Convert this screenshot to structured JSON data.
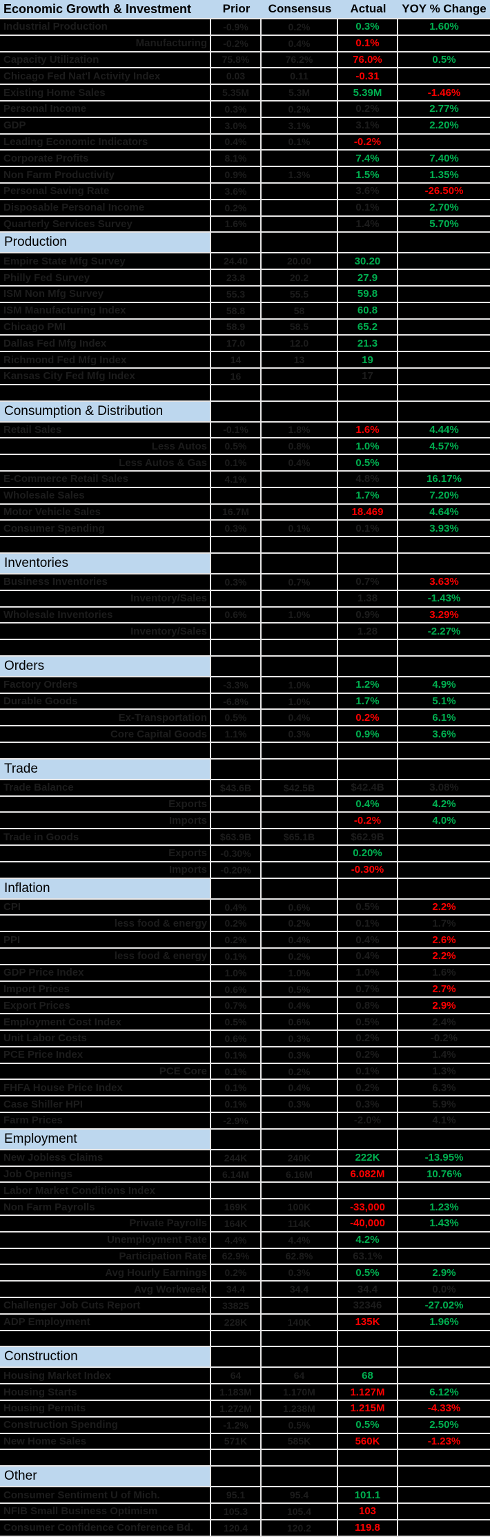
{
  "header": {
    "label": "Economic Growth & Investment",
    "prior": "Prior",
    "consensus": "Consensus",
    "actual": "Actual",
    "yoy": "YOY % Change"
  },
  "colors": {
    "header_bg": "#bdd7ee",
    "row_bg": "#000000",
    "gridline": "#e7e6e6",
    "dim_text": "#1c1c1c",
    "positive_green": "#00b050",
    "negative_red": "#ff0000",
    "header_text": "#000000"
  },
  "rows": [
    {
      "t": "d",
      "label": "Industrial Production",
      "sub": false,
      "prior": "-0.9%",
      "consensus": "0.2%",
      "actual": "0.3%",
      "at": "green",
      "yoy": "1.60%",
      "yt": "green"
    },
    {
      "t": "d",
      "label": "Manufacturing",
      "sub": true,
      "prior": "-0.2%",
      "consensus": "0.4%",
      "actual": "0.1%",
      "at": "red",
      "yoy": "",
      "yt": "dim"
    },
    {
      "t": "d",
      "label": "Capacity Utilization",
      "sub": false,
      "prior": "75.8%",
      "consensus": "76.2%",
      "actual": "76.0%",
      "at": "red",
      "yoy": "0.5%",
      "yt": "green"
    },
    {
      "t": "d",
      "label": "Chicago Fed Nat'l Activity Index",
      "sub": false,
      "prior": "0.03",
      "consensus": "0.11",
      "actual": "-0.31",
      "at": "red",
      "yoy": "",
      "yt": "dim"
    },
    {
      "t": "d",
      "label": "Existing Home Sales",
      "sub": false,
      "prior": "5.35M",
      "consensus": "5.3M",
      "actual": "5.39M",
      "at": "green",
      "yoy": "-1.46%",
      "yt": "red"
    },
    {
      "t": "d",
      "label": "Personal Income",
      "sub": false,
      "prior": "0.3%",
      "consensus": "0.2%",
      "actual": "0.2%",
      "at": "dim",
      "yoy": "2.77%",
      "yt": "green"
    },
    {
      "t": "d",
      "label": "GDP",
      "sub": false,
      "prior": "3.0%",
      "consensus": "3.1%",
      "actual": "3.1%",
      "at": "dim",
      "yoy": "2.20%",
      "yt": "green"
    },
    {
      "t": "d",
      "label": "Leading Economic Indicators",
      "sub": false,
      "prior": "0.4%",
      "consensus": "0.1%",
      "actual": "-0.2%",
      "at": "red",
      "yoy": "",
      "yt": "dim"
    },
    {
      "t": "d",
      "label": "Corporate Profits",
      "sub": false,
      "prior": "8.1%",
      "consensus": "",
      "actual": "7.4%",
      "at": "green",
      "yoy": "7.40%",
      "yt": "green"
    },
    {
      "t": "d",
      "label": "Non Farm Productivity",
      "sub": false,
      "prior": "0.9%",
      "consensus": "1.3%",
      "actual": "1.5%",
      "at": "green",
      "yoy": "1.35%",
      "yt": "green"
    },
    {
      "t": "d",
      "label": "Personal Saving Rate",
      "sub": false,
      "prior": "3.6%",
      "consensus": "",
      "actual": "3.6%",
      "at": "dim",
      "yoy": "-26.50%",
      "yt": "red"
    },
    {
      "t": "d",
      "label": "Disposable Personal Income",
      "sub": false,
      "prior": "0.2%",
      "consensus": "",
      "actual": "0.1%",
      "at": "dim",
      "yoy": "2.70%",
      "yt": "green"
    },
    {
      "t": "d",
      "label": "Quarterly Services Survey",
      "sub": false,
      "prior": "1.6%",
      "consensus": "",
      "actual": "1.4%",
      "at": "dim",
      "yoy": "5.70%",
      "yt": "green"
    },
    {
      "t": "s",
      "label": "Production"
    },
    {
      "t": "d",
      "label": "Empire State Mfg Survey",
      "sub": false,
      "prior": "24.40",
      "consensus": "20.00",
      "actual": "30.20",
      "at": "green",
      "yoy": "",
      "yt": "dim"
    },
    {
      "t": "d",
      "label": "Philly Fed Survey",
      "sub": false,
      "prior": "23.8",
      "consensus": "20.2",
      "actual": "27.9",
      "at": "green",
      "yoy": "",
      "yt": "dim"
    },
    {
      "t": "d",
      "label": "ISM Non Mfg Survey",
      "sub": false,
      "prior": "55.3",
      "consensus": "55.5",
      "actual": "59.8",
      "at": "green",
      "yoy": "",
      "yt": "dim"
    },
    {
      "t": "d",
      "label": "ISM Manufacturing Index",
      "sub": false,
      "prior": "58.8",
      "consensus": "58",
      "actual": "60.8",
      "at": "green",
      "yoy": "",
      "yt": "dim"
    },
    {
      "t": "d",
      "label": "Chicago PMI",
      "sub": false,
      "prior": "58.9",
      "consensus": "58.5",
      "actual": "65.2",
      "at": "green",
      "yoy": "",
      "yt": "dim"
    },
    {
      "t": "d",
      "label": "Dallas Fed Mfg Index",
      "sub": false,
      "prior": "17.0",
      "consensus": "12.0",
      "actual": "21.3",
      "at": "green",
      "yoy": "",
      "yt": "dim"
    },
    {
      "t": "d",
      "label": "Richmond Fed Mfg Index",
      "sub": false,
      "prior": "14",
      "consensus": "13",
      "actual": "19",
      "at": "green",
      "yoy": "",
      "yt": "dim"
    },
    {
      "t": "d",
      "label": "Kansas City Fed Mfg Index",
      "sub": false,
      "prior": "16",
      "consensus": "",
      "actual": "17",
      "at": "dim",
      "yoy": "",
      "yt": "dim"
    },
    {
      "t": "x"
    },
    {
      "t": "s",
      "label": "Consumption & Distribution"
    },
    {
      "t": "d",
      "label": "Retail Sales",
      "sub": false,
      "prior": "-0.1%",
      "consensus": "1.8%",
      "actual": "1.6%",
      "at": "red",
      "yoy": "4.44%",
      "yt": "green"
    },
    {
      "t": "d",
      "label": "Less Autos",
      "sub": true,
      "prior": "0.5%",
      "consensus": "0.8%",
      "actual": "1.0%",
      "at": "green",
      "yoy": "4.57%",
      "yt": "green"
    },
    {
      "t": "d",
      "label": "Less Autos & Gas",
      "sub": true,
      "prior": "0.1%",
      "consensus": "0.4%",
      "actual": "0.5%",
      "at": "green",
      "yoy": "",
      "yt": "dim"
    },
    {
      "t": "d",
      "label": "E-Commerce Retail Sales",
      "sub": false,
      "prior": "4.1%",
      "consensus": "",
      "actual": "4.8%",
      "at": "dim",
      "yoy": "16.17%",
      "yt": "green"
    },
    {
      "t": "d",
      "label": "Wholesale Sales",
      "sub": false,
      "prior": "",
      "consensus": "",
      "actual": "1.7%",
      "at": "green",
      "yoy": "7.20%",
      "yt": "green"
    },
    {
      "t": "d",
      "label": "Motor Vehicle Sales",
      "sub": false,
      "prior": "16.7M",
      "consensus": "",
      "actual": "18.469",
      "at": "red",
      "yoy": "4.64%",
      "yt": "green"
    },
    {
      "t": "d",
      "label": "Consumer Spending",
      "sub": false,
      "prior": "0.3%",
      "consensus": "0.1%",
      "actual": "0.1%",
      "at": "dim",
      "yoy": "3.93%",
      "yt": "green"
    },
    {
      "t": "x"
    },
    {
      "t": "s",
      "label": "Inventories"
    },
    {
      "t": "d",
      "label": "Business Inventories",
      "sub": false,
      "prior": "0.3%",
      "consensus": "0.7%",
      "actual": "0.7%",
      "at": "dim",
      "yoy": "3.63%",
      "yt": "red"
    },
    {
      "t": "d",
      "label": "Inventory/Sales",
      "sub": true,
      "prior": "",
      "consensus": "",
      "actual": "1.38",
      "at": "dim",
      "yoy": "-1.43%",
      "yt": "green"
    },
    {
      "t": "d",
      "label": "Wholesale Inventories",
      "sub": false,
      "prior": "0.6%",
      "consensus": "1.0%",
      "actual": "0.9%",
      "at": "dim",
      "yoy": "3.29%",
      "yt": "red"
    },
    {
      "t": "d",
      "label": "Inventory/Sales",
      "sub": true,
      "prior": "",
      "consensus": "",
      "actual": "1.28",
      "at": "dim",
      "yoy": "-2.27%",
      "yt": "green"
    },
    {
      "t": "x"
    },
    {
      "t": "s",
      "label": "Orders"
    },
    {
      "t": "d",
      "label": "Factory Orders",
      "sub": false,
      "prior": "-3.3%",
      "consensus": "1.0%",
      "actual": "1.2%",
      "at": "green",
      "yoy": "4.9%",
      "yt": "green"
    },
    {
      "t": "d",
      "label": "Durable Goods",
      "sub": false,
      "prior": "-6.8%",
      "consensus": "1.0%",
      "actual": "1.7%",
      "at": "green",
      "yoy": "5.1%",
      "yt": "green"
    },
    {
      "t": "d",
      "label": "Ex-Transportation",
      "sub": true,
      "prior": "0.5%",
      "consensus": "0.4%",
      "actual": "0.2%",
      "at": "red",
      "yoy": "6.1%",
      "yt": "green"
    },
    {
      "t": "d",
      "label": "Core Capital Goods",
      "sub": true,
      "prior": "1.1%",
      "consensus": "0.3%",
      "actual": "0.9%",
      "at": "green",
      "yoy": "3.6%",
      "yt": "green"
    },
    {
      "t": "x"
    },
    {
      "t": "s",
      "label": "Trade"
    },
    {
      "t": "d",
      "label": "Trade Balance",
      "sub": false,
      "prior": "$43.6B",
      "consensus": "$42.5B",
      "actual": "$42.4B",
      "at": "dim",
      "yoy": "3.08%",
      "yt": "dim"
    },
    {
      "t": "d",
      "label": "Exports",
      "sub": true,
      "prior": "",
      "consensus": "",
      "actual": "0.4%",
      "at": "green",
      "yoy": "4.2%",
      "yt": "green"
    },
    {
      "t": "d",
      "label": "Imports",
      "sub": true,
      "prior": "",
      "consensus": "",
      "actual": "-0.2%",
      "at": "red",
      "yoy": "4.0%",
      "yt": "green"
    },
    {
      "t": "d",
      "label": "Trade in Goods",
      "sub": false,
      "prior": "$63.9B",
      "consensus": "$65.1B",
      "actual": "$62.9B",
      "at": "dim",
      "yoy": "",
      "yt": "dim"
    },
    {
      "t": "d",
      "label": "Exports",
      "sub": true,
      "prior": "-0.30%",
      "consensus": "",
      "actual": "0.20%",
      "at": "green",
      "yoy": "",
      "yt": "dim"
    },
    {
      "t": "d",
      "label": "Imports",
      "sub": true,
      "prior": "-0.20%",
      "consensus": "",
      "actual": "-0.30%",
      "at": "red",
      "yoy": "",
      "yt": "dim"
    },
    {
      "t": "s",
      "label": "Inflation"
    },
    {
      "t": "d",
      "label": "CPI",
      "sub": false,
      "prior": "0.4%",
      "consensus": "0.6%",
      "actual": "0.5%",
      "at": "dim",
      "yoy": "2.2%",
      "yt": "red"
    },
    {
      "t": "d",
      "label": "less food & energy",
      "sub": true,
      "prior": "0.2%",
      "consensus": "0.2%",
      "actual": "0.1%",
      "at": "dim",
      "yoy": "1.7%",
      "yt": "dim"
    },
    {
      "t": "d",
      "label": "PPI",
      "sub": false,
      "prior": "0.2%",
      "consensus": "0.4%",
      "actual": "0.4%",
      "at": "dim",
      "yoy": "2.6%",
      "yt": "red"
    },
    {
      "t": "d",
      "label": "less food & energy",
      "sub": true,
      "prior": "0.1%",
      "consensus": "0.2%",
      "actual": "0.4%",
      "at": "dim",
      "yoy": "2.2%",
      "yt": "red"
    },
    {
      "t": "d",
      "label": "GDP Price Index",
      "sub": false,
      "prior": "1.0%",
      "consensus": "1.0%",
      "actual": "1.0%",
      "at": "dim",
      "yoy": "1.6%",
      "yt": "dim"
    },
    {
      "t": "d",
      "label": "Import Prices",
      "sub": false,
      "prior": "0.6%",
      "consensus": "0.5%",
      "actual": "0.7%",
      "at": "dim",
      "yoy": "2.7%",
      "yt": "red"
    },
    {
      "t": "d",
      "label": "Export Prices",
      "sub": false,
      "prior": "0.7%",
      "consensus": "0.4%",
      "actual": "0.8%",
      "at": "dim",
      "yoy": "2.9%",
      "yt": "red"
    },
    {
      "t": "d",
      "label": "Employment Cost Index",
      "sub": false,
      "prior": "0.5%",
      "consensus": "0.6%",
      "actual": "0.5%",
      "at": "dim",
      "yoy": "2.4%",
      "yt": "dim"
    },
    {
      "t": "d",
      "label": "Unit Labor Costs",
      "sub": false,
      "prior": "0.6%",
      "consensus": "0.3%",
      "actual": "0.2%",
      "at": "dim",
      "yoy": "-0.2%",
      "yt": "dim"
    },
    {
      "t": "d",
      "label": "PCE Price Index",
      "sub": false,
      "prior": "0.1%",
      "consensus": "0.3%",
      "actual": "0.2%",
      "at": "dim",
      "yoy": "1.4%",
      "yt": "dim"
    },
    {
      "t": "d",
      "label": "PCE Core",
      "sub": true,
      "prior": "0.1%",
      "consensus": "0.2%",
      "actual": "0.1%",
      "at": "dim",
      "yoy": "1.3%",
      "yt": "dim"
    },
    {
      "t": "d",
      "label": "FHFA House Price Index",
      "sub": false,
      "prior": "0.1%",
      "consensus": "0.4%",
      "actual": "0.2%",
      "at": "dim",
      "yoy": "6.3%",
      "yt": "dim"
    },
    {
      "t": "d",
      "label": "Case Shiller HPI",
      "sub": false,
      "prior": "0.1%",
      "consensus": "0.3%",
      "actual": "0.3%",
      "at": "dim",
      "yoy": "5.9%",
      "yt": "dim"
    },
    {
      "t": "d",
      "label": "Farm Prices",
      "sub": false,
      "prior": "-2.9%",
      "consensus": "",
      "actual": "-2.0%",
      "at": "dim",
      "yoy": "4.1%",
      "yt": "dim"
    },
    {
      "t": "s",
      "label": "Employment"
    },
    {
      "t": "d",
      "label": "New Jobless Claims",
      "sub": false,
      "prior": "244K",
      "consensus": "240K",
      "actual": "222K",
      "at": "green",
      "yoy": "-13.95%",
      "yt": "green"
    },
    {
      "t": "d",
      "label": "Job Openings",
      "sub": false,
      "prior": "6.14M",
      "consensus": "6.16M",
      "actual": "6.082M",
      "at": "red",
      "yoy": "10.76%",
      "yt": "green"
    },
    {
      "t": "d",
      "label": "Labor Market Conditions Index",
      "sub": false,
      "prior": "",
      "consensus": "",
      "actual": "",
      "at": "dim",
      "yoy": "",
      "yt": "dim"
    },
    {
      "t": "d",
      "label": "Non Farm Payrolls",
      "sub": false,
      "prior": "169K",
      "consensus": "100K",
      "actual": "-33,000",
      "at": "red",
      "yoy": "1.23%",
      "yt": "green"
    },
    {
      "t": "d",
      "label": "Private Payrolls",
      "sub": true,
      "prior": "164K",
      "consensus": "114K",
      "actual": "-40,000",
      "at": "red",
      "yoy": "1.43%",
      "yt": "green"
    },
    {
      "t": "d",
      "label": "Unemployment Rate",
      "sub": true,
      "prior": "4.4%",
      "consensus": "4.4%",
      "actual": "4.2%",
      "at": "green",
      "yoy": "",
      "yt": "dim"
    },
    {
      "t": "d",
      "label": "Participation Rate",
      "sub": true,
      "prior": "62.9%",
      "consensus": "62.8%",
      "actual": "63.1%",
      "at": "dim",
      "yoy": "",
      "yt": "dim"
    },
    {
      "t": "d",
      "label": "Avg Hourly Earnings",
      "sub": true,
      "prior": "0.2%",
      "consensus": "0.3%",
      "actual": "0.5%",
      "at": "green",
      "yoy": "2.9%",
      "yt": "green"
    },
    {
      "t": "d",
      "label": "Avg Workweek",
      "sub": true,
      "prior": "34.4",
      "consensus": "34.4",
      "actual": "34.4",
      "at": "dim",
      "yoy": "0.0%",
      "yt": "dim"
    },
    {
      "t": "d",
      "label": "Challenger Job Cuts Report",
      "sub": false,
      "prior": "33825",
      "consensus": "",
      "actual": "32346",
      "at": "dim",
      "yoy": "-27.02%",
      "yt": "green"
    },
    {
      "t": "d",
      "label": "ADP Employment",
      "sub": false,
      "prior": "228K",
      "consensus": "140K",
      "actual": "135K",
      "at": "red",
      "yoy": "1.96%",
      "yt": "green"
    },
    {
      "t": "x"
    },
    {
      "t": "s",
      "label": "Construction"
    },
    {
      "t": "d",
      "label": "Housing Market Index",
      "sub": false,
      "prior": "64",
      "consensus": "64",
      "actual": "68",
      "at": "green",
      "yoy": "",
      "yt": "dim"
    },
    {
      "t": "d",
      "label": "Housing Starts",
      "sub": false,
      "prior": "1.183M",
      "consensus": "1.170M",
      "actual": "1.127M",
      "at": "red",
      "yoy": "6.12%",
      "yt": "green"
    },
    {
      "t": "d",
      "label": "Housing Permits",
      "sub": false,
      "prior": "1.272M",
      "consensus": "1.238M",
      "actual": "1.215M",
      "at": "red",
      "yoy": "-4.33%",
      "yt": "red"
    },
    {
      "t": "d",
      "label": "Construction Spending",
      "sub": false,
      "prior": "-1.2%",
      "consensus": "0.5%",
      "actual": "0.5%",
      "at": "green",
      "yoy": "2.50%",
      "yt": "green"
    },
    {
      "t": "d",
      "label": "New Home Sales",
      "sub": false,
      "prior": "571K",
      "consensus": "585K",
      "actual": "560K",
      "at": "red",
      "yoy": "-1.23%",
      "yt": "red"
    },
    {
      "t": "x"
    },
    {
      "t": "s",
      "label": "Other"
    },
    {
      "t": "d",
      "label": "Consumer Sentiment U of Mich.",
      "sub": false,
      "prior": "95.1",
      "consensus": "95.4",
      "actual": "101.1",
      "at": "green",
      "yoy": "",
      "yt": "dim"
    },
    {
      "t": "d",
      "label": "NFIB Small Business Optimism",
      "sub": false,
      "prior": "105.3",
      "consensus": "105.4",
      "actual": "103",
      "at": "red",
      "yoy": "",
      "yt": "dim"
    },
    {
      "t": "d",
      "label": "Consumer Confidence Conference Bd.",
      "sub": false,
      "prior": "120.4",
      "consensus": "120.2",
      "actual": "119.8",
      "at": "red",
      "yoy": "",
      "yt": "dim"
    }
  ]
}
